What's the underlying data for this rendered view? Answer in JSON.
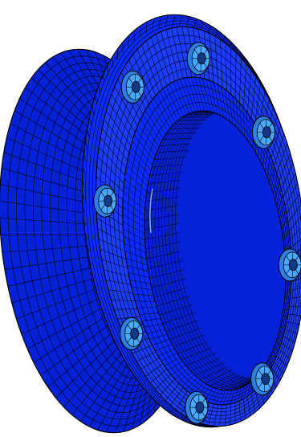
{
  "scene": {
    "model": "bolted-flange-mesh",
    "bolt_count": 8,
    "colors": {
      "background": "#ffffff",
      "mesh_fill": "#0a2cff",
      "mesh_fill_dark": "#0622d8",
      "mesh_fill_light": "#1a3dff",
      "mesh_lines": "#000000",
      "bolt_fill": "#2e7fe0",
      "bolt_highlight": "#49a8ff",
      "bolt_core": "#103a86",
      "seam_highlight": "#9fd6ff"
    },
    "icons": {
      "bolt": "bolt-head-icon"
    }
  }
}
